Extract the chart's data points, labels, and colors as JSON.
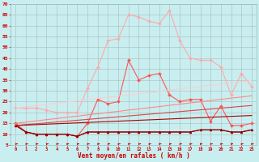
{
  "background_color": "#c8eef0",
  "grid_color": "#aacccc",
  "xlabel": "Vent moyen/en rafales ( km/h )",
  "x": [
    0,
    1,
    2,
    3,
    4,
    5,
    6,
    7,
    8,
    9,
    10,
    11,
    12,
    13,
    14,
    15,
    16,
    17,
    18,
    19,
    20,
    21,
    22,
    23
  ],
  "ylim": [
    5,
    70
  ],
  "yticks": [
    5,
    10,
    15,
    20,
    25,
    30,
    35,
    40,
    45,
    50,
    55,
    60,
    65,
    70
  ],
  "series": [
    {
      "color": "#ffaaaa",
      "linewidth": 0.8,
      "marker": "D",
      "markersize": 2,
      "y": [
        22,
        22,
        22,
        21,
        20,
        20,
        20,
        31,
        41,
        53,
        54,
        65,
        64,
        62,
        61,
        67,
        53,
        45,
        44,
        44,
        41,
        28,
        38,
        32
      ]
    },
    {
      "color": "#ff5555",
      "linewidth": 0.8,
      "marker": "D",
      "markersize": 2,
      "y": [
        15,
        11,
        10,
        10,
        10,
        10,
        9,
        15,
        26,
        24,
        25,
        44,
        35,
        37,
        38,
        28,
        25,
        26,
        26,
        16,
        23,
        14,
        14,
        15
      ]
    },
    {
      "color": "#cc0000",
      "linewidth": 0.8,
      "marker": "^",
      "markersize": 2,
      "y": [
        14,
        11,
        10,
        10,
        10,
        10,
        9,
        11,
        11,
        11,
        11,
        11,
        11,
        11,
        11,
        11,
        11,
        11,
        12,
        12,
        12,
        11,
        11,
        12
      ]
    },
    {
      "color": "#880000",
      "linewidth": 0.8,
      "marker": "^",
      "markersize": 2,
      "y": [
        14,
        11,
        10,
        10,
        10,
        10,
        9,
        11,
        11,
        11,
        11,
        11,
        11,
        11,
        11,
        11,
        11,
        11,
        12,
        12,
        12,
        11,
        11,
        12
      ]
    },
    {
      "color": "#ffcccc",
      "linewidth": 0.8,
      "marker": null,
      "markersize": 0,
      "y": [
        22,
        22.6,
        23.1,
        23.7,
        24.2,
        24.8,
        25.3,
        25.9,
        26.4,
        27.0,
        27.5,
        28.1,
        28.6,
        29.2,
        29.7,
        30.3,
        30.8,
        31.4,
        31.9,
        32.5,
        33.0,
        33.6,
        34.1,
        34.7
      ]
    },
    {
      "color": "#ff8888",
      "linewidth": 0.8,
      "marker": null,
      "markersize": 0,
      "y": [
        15,
        15.6,
        16.1,
        16.7,
        17.2,
        17.8,
        18.3,
        18.9,
        19.4,
        20.0,
        20.5,
        21.1,
        21.6,
        22.2,
        22.7,
        23.3,
        23.8,
        24.4,
        24.9,
        25.5,
        26.0,
        26.6,
        27.1,
        27.7
      ]
    },
    {
      "color": "#dd4444",
      "linewidth": 0.8,
      "marker": null,
      "markersize": 0,
      "y": [
        14,
        14.4,
        14.8,
        15.2,
        15.6,
        16.0,
        16.4,
        16.8,
        17.2,
        17.6,
        18.0,
        18.4,
        18.8,
        19.2,
        19.6,
        20.0,
        20.4,
        20.8,
        21.2,
        21.6,
        22.0,
        22.4,
        22.8,
        23.2
      ]
    },
    {
      "color": "#aa0000",
      "linewidth": 0.8,
      "marker": null,
      "markersize": 0,
      "y": [
        14,
        14.2,
        14.4,
        14.6,
        14.8,
        15.0,
        15.2,
        15.4,
        15.6,
        15.8,
        16.0,
        16.2,
        16.4,
        16.6,
        16.8,
        17.0,
        17.2,
        17.4,
        17.6,
        17.8,
        18.0,
        18.2,
        18.4,
        18.6
      ]
    }
  ]
}
